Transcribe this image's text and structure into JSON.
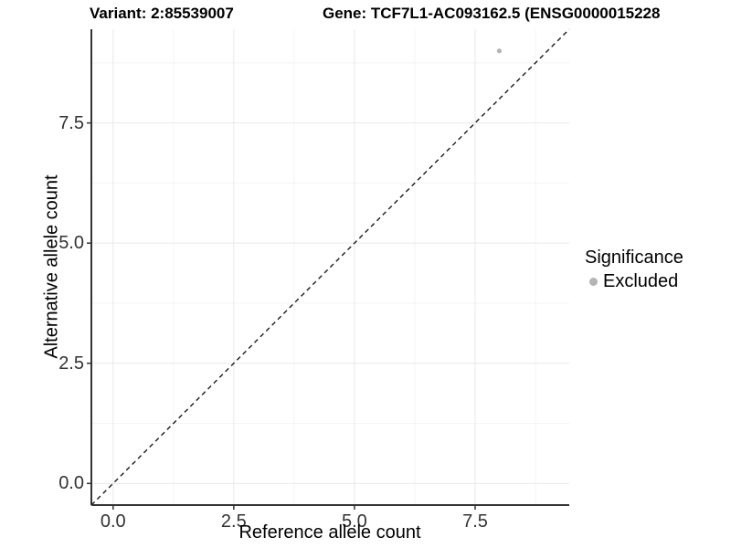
{
  "titles": {
    "variant": "Variant: 2:85539007",
    "gene": "Gene: TCF7L1-AC093162.5 (ENSG0000015228"
  },
  "chart_data": {
    "type": "scatter",
    "title_variant": "Variant: 2:85539007",
    "title_gene": "Gene: TCF7L1-AC093162.5 (ENSG0000015228",
    "xlabel": "Reference allele count",
    "ylabel": "Alternative allele count",
    "xlim": [
      -0.45,
      9.45
    ],
    "ylim": [
      -0.45,
      9.45
    ],
    "x_breaks": [
      0,
      2.5,
      5,
      7.5
    ],
    "y_breaks": [
      0,
      2.5,
      5,
      7.5
    ],
    "x_tick_labels": [
      "0.0",
      "2.5",
      "5.0",
      "7.5"
    ],
    "y_tick_labels": [
      "0.0",
      "2.5",
      "5.0",
      "7.5"
    ],
    "x_minor_breaks": [
      1.25,
      3.75,
      6.25,
      8.75
    ],
    "y_minor_breaks": [
      1.25,
      3.75,
      6.25,
      8.75
    ],
    "grid": true,
    "points": [
      {
        "x": 8,
        "y": 9,
        "significance": "Excluded"
      }
    ],
    "abline": {
      "slope": 1,
      "intercept": 0,
      "style": "dashed"
    },
    "legend": {
      "position": "right",
      "title": "Significance",
      "entries": [
        {
          "label": "Excluded",
          "color": "#b4b4b4"
        }
      ]
    },
    "colors": {
      "point": "#b4b4b4",
      "grid_major": "#e9e9e9",
      "grid_minor": "#f4f4f4",
      "axis_line": "#333333",
      "dashed_line": "#1a1a1a",
      "tick_label": "#333333"
    }
  }
}
